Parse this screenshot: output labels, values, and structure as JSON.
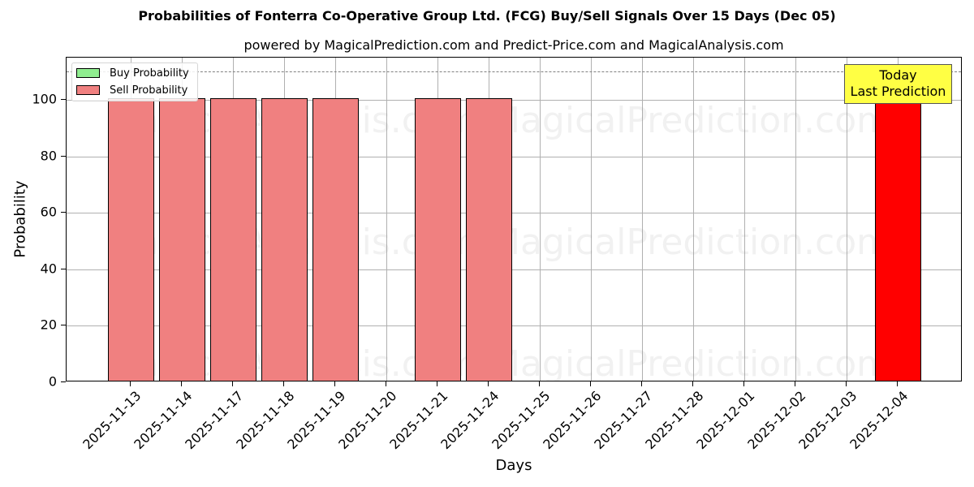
{
  "chart_data": {
    "type": "bar",
    "title": "Probabilities of Fonterra Co-Operative Group Ltd. (FCG) Buy/Sell Signals Over 15 Days (Dec 05)",
    "subtitle": "powered by MagicalPrediction.com and Predict-Price.com and MagicalAnalysis.com",
    "xlabel": "Days",
    "ylabel": "Probability",
    "ylim": [
      0,
      115
    ],
    "yticks": [
      0,
      20,
      40,
      60,
      80,
      100
    ],
    "grid": true,
    "legend_position": "upper left",
    "categories": [
      "2025-11-13",
      "2025-11-14",
      "2025-11-17",
      "2025-11-18",
      "2025-11-19",
      "2025-11-20",
      "2025-11-21",
      "2025-11-24",
      "2025-11-25",
      "2025-11-26",
      "2025-11-27",
      "2025-11-28",
      "2025-12-01",
      "2025-12-02",
      "2025-12-03",
      "2025-12-04"
    ],
    "series": [
      {
        "name": "Buy Probability",
        "color": "#90ee90",
        "values": [
          0,
          0,
          0,
          0,
          0,
          0,
          0,
          0,
          0,
          0,
          0,
          0,
          0,
          0,
          0,
          0
        ]
      },
      {
        "name": "Sell Probability",
        "color": "#f08080",
        "values": [
          100,
          100,
          100,
          100,
          100,
          0,
          100,
          100,
          0,
          0,
          0,
          0,
          0,
          0,
          0,
          100
        ]
      }
    ],
    "highlight": {
      "category": "2025-12-04",
      "color": "#ff0000"
    },
    "reference_line": {
      "y": 110,
      "style": "dashed",
      "color": "#808080"
    },
    "annotation": {
      "text_line1": "Today",
      "text_line2": "Last Prediction",
      "background": "#ffff44"
    },
    "watermarks": [
      "MagicalAnalysis.com",
      "MagicalPrediction.com"
    ]
  },
  "legend": {
    "buy_label": "Buy Probability",
    "sell_label": "Sell Probability"
  },
  "axes": {
    "y_tick_labels": [
      "0",
      "20",
      "40",
      "60",
      "80",
      "100"
    ]
  }
}
